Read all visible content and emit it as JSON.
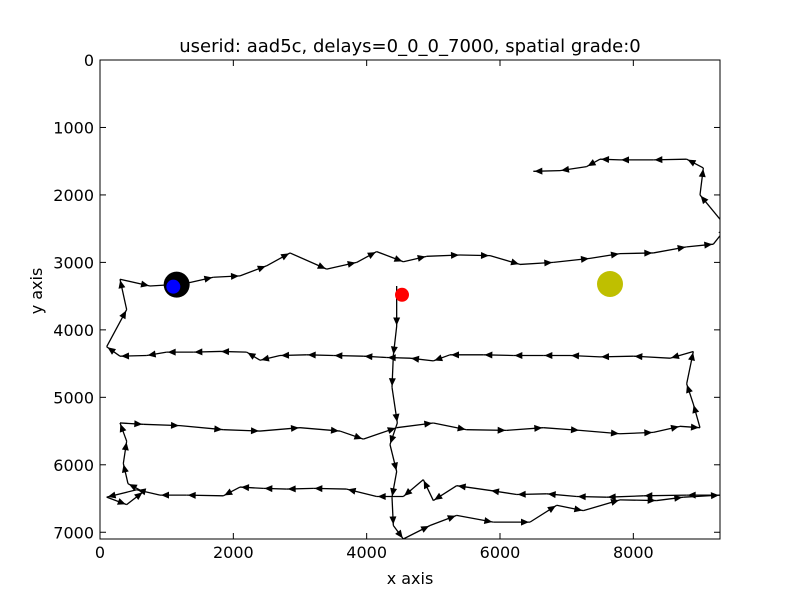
{
  "chart_data": {
    "type": "scatter",
    "title": "userid: aad5c, delays=0_0_0_7000, spatial grade:0",
    "xlabel": "x axis",
    "ylabel": "y axis",
    "xlim": [
      0,
      9300
    ],
    "ylim": [
      7100,
      0
    ],
    "y_inverted": true,
    "grid": false,
    "x_ticks": [
      0,
      2000,
      4000,
      6000,
      8000
    ],
    "x_tick_labels": [
      "0",
      "2000",
      "4000",
      "6000",
      "8000"
    ],
    "y_ticks": [
      0,
      1000,
      2000,
      3000,
      4000,
      5000,
      6000,
      7000
    ],
    "y_tick_labels": [
      "0",
      "1000",
      "2000",
      "3000",
      "4000",
      "5000",
      "6000",
      "7000"
    ],
    "line_color": "#000000",
    "path": [
      [
        4450,
        3350
      ],
      [
        4450,
        3950
      ],
      [
        4400,
        4380
      ],
      [
        4380,
        4850
      ],
      [
        4460,
        5380
      ],
      [
        4350,
        5700
      ],
      [
        4450,
        6100
      ],
      [
        4380,
        6480
      ],
      [
        4400,
        6900
      ],
      [
        4550,
        7100
      ],
      [
        4950,
        6900
      ],
      [
        5350,
        6750
      ],
      [
        5900,
        6850
      ],
      [
        6450,
        6850
      ],
      [
        6850,
        6600
      ],
      [
        7250,
        6680
      ],
      [
        7800,
        6520
      ],
      [
        8350,
        6530
      ],
      [
        8750,
        6480
      ],
      [
        9300,
        6450
      ],
      [
        8800,
        6450
      ],
      [
        8150,
        6460
      ],
      [
        7600,
        6480
      ],
      [
        7150,
        6470
      ],
      [
        6700,
        6430
      ],
      [
        6250,
        6440
      ],
      [
        5850,
        6380
      ],
      [
        5350,
        6310
      ],
      [
        5000,
        6530
      ],
      [
        4850,
        6220
      ],
      [
        4550,
        6470
      ],
      [
        4150,
        6470
      ],
      [
        3700,
        6360
      ],
      [
        3200,
        6350
      ],
      [
        2800,
        6360
      ],
      [
        2450,
        6350
      ],
      [
        2100,
        6330
      ],
      [
        1850,
        6460
      ],
      [
        1300,
        6450
      ],
      [
        900,
        6450
      ],
      [
        550,
        6370
      ],
      [
        100,
        6480
      ],
      [
        400,
        6590
      ],
      [
        650,
        6400
      ],
      [
        420,
        6280
      ],
      [
        350,
        5980
      ],
      [
        400,
        5650
      ],
      [
        300,
        5380
      ],
      [
        650,
        5400
      ],
      [
        1200,
        5420
      ],
      [
        1850,
        5480
      ],
      [
        2400,
        5500
      ],
      [
        3000,
        5450
      ],
      [
        3600,
        5500
      ],
      [
        3950,
        5620
      ],
      [
        4450,
        5450
      ],
      [
        5000,
        5380
      ],
      [
        5500,
        5480
      ],
      [
        6100,
        5490
      ],
      [
        6650,
        5450
      ],
      [
        7200,
        5490
      ],
      [
        7800,
        5540
      ],
      [
        8300,
        5520
      ],
      [
        8700,
        5430
      ],
      [
        9000,
        5450
      ],
      [
        8900,
        5100
      ],
      [
        8800,
        4800
      ],
      [
        8900,
        4320
      ],
      [
        8550,
        4420
      ],
      [
        8000,
        4390
      ],
      [
        7500,
        4400
      ],
      [
        7050,
        4380
      ],
      [
        6650,
        4380
      ],
      [
        6200,
        4380
      ],
      [
        5750,
        4370
      ],
      [
        5250,
        4370
      ],
      [
        5000,
        4460
      ],
      [
        4650,
        4420
      ],
      [
        4300,
        4410
      ],
      [
        3950,
        4390
      ],
      [
        3500,
        4380
      ],
      [
        3100,
        4370
      ],
      [
        2700,
        4380
      ],
      [
        2400,
        4450
      ],
      [
        2200,
        4330
      ],
      [
        1800,
        4320
      ],
      [
        1400,
        4330
      ],
      [
        1000,
        4330
      ],
      [
        700,
        4380
      ],
      [
        300,
        4390
      ],
      [
        100,
        4250
      ],
      [
        400,
        3700
      ],
      [
        300,
        3250
      ],
      [
        750,
        3350
      ],
      [
        1250,
        3320
      ],
      [
        1700,
        3220
      ],
      [
        2100,
        3200
      ],
      [
        2500,
        3050
      ],
      [
        2850,
        2860
      ],
      [
        3400,
        3100
      ],
      [
        3850,
        3000
      ],
      [
        4150,
        2840
      ],
      [
        4550,
        2990
      ],
      [
        4900,
        2910
      ],
      [
        5400,
        2890
      ],
      [
        5850,
        2900
      ],
      [
        6300,
        3030
      ],
      [
        6800,
        3000
      ],
      [
        7350,
        2940
      ],
      [
        7800,
        2870
      ],
      [
        8300,
        2860
      ],
      [
        8800,
        2770
      ],
      [
        9200,
        2730
      ],
      [
        9400,
        2480
      ],
      [
        9000,
        2000
      ],
      [
        9050,
        1600
      ],
      [
        8800,
        1470
      ],
      [
        8300,
        1480
      ],
      [
        7800,
        1480
      ],
      [
        7500,
        1470
      ],
      [
        7300,
        1580
      ],
      [
        6900,
        1640
      ],
      [
        6500,
        1650
      ]
    ],
    "markers": [
      {
        "x": 1150,
        "y": 3330,
        "color": "#000000",
        "size": "large"
      },
      {
        "x": 1100,
        "y": 3360,
        "color": "#0000ff",
        "size": "small"
      },
      {
        "x": 4530,
        "y": 3480,
        "color": "#ff0000",
        "size": "small"
      },
      {
        "x": 7650,
        "y": 3320,
        "color": "#bfbf00",
        "size": "large"
      }
    ]
  }
}
